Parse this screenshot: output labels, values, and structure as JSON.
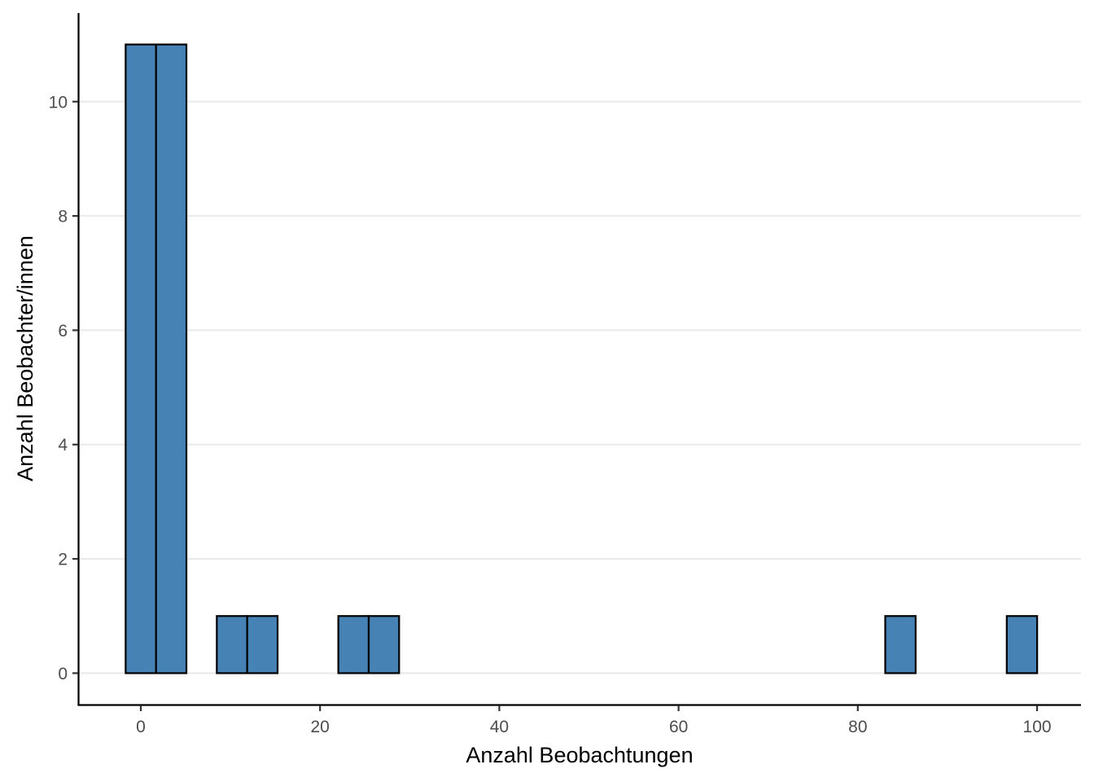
{
  "chart_data": {
    "type": "bar",
    "title": "",
    "xlabel": "Anzahl Beobachtungen",
    "ylabel": "Anzahl Beobachter/innen",
    "xlim": [
      -6.9,
      104.9
    ],
    "ylim": [
      -0.55,
      11.55
    ],
    "x_ticks": [
      0,
      20,
      40,
      60,
      80,
      100
    ],
    "y_ticks": [
      0,
      2,
      4,
      6,
      8,
      10
    ],
    "grid": "horizontal major",
    "legend": "none",
    "bin_width": 3.39,
    "bin_start": -1.69,
    "counts": [
      11,
      11,
      0,
      1,
      1,
      0,
      0,
      1,
      1,
      0,
      0,
      0,
      0,
      0,
      0,
      0,
      0,
      0,
      0,
      0,
      0,
      0,
      0,
      0,
      0,
      1,
      0,
      0,
      0,
      1
    ],
    "bar_fill": "#4682b4",
    "bar_outline": "#000000"
  }
}
